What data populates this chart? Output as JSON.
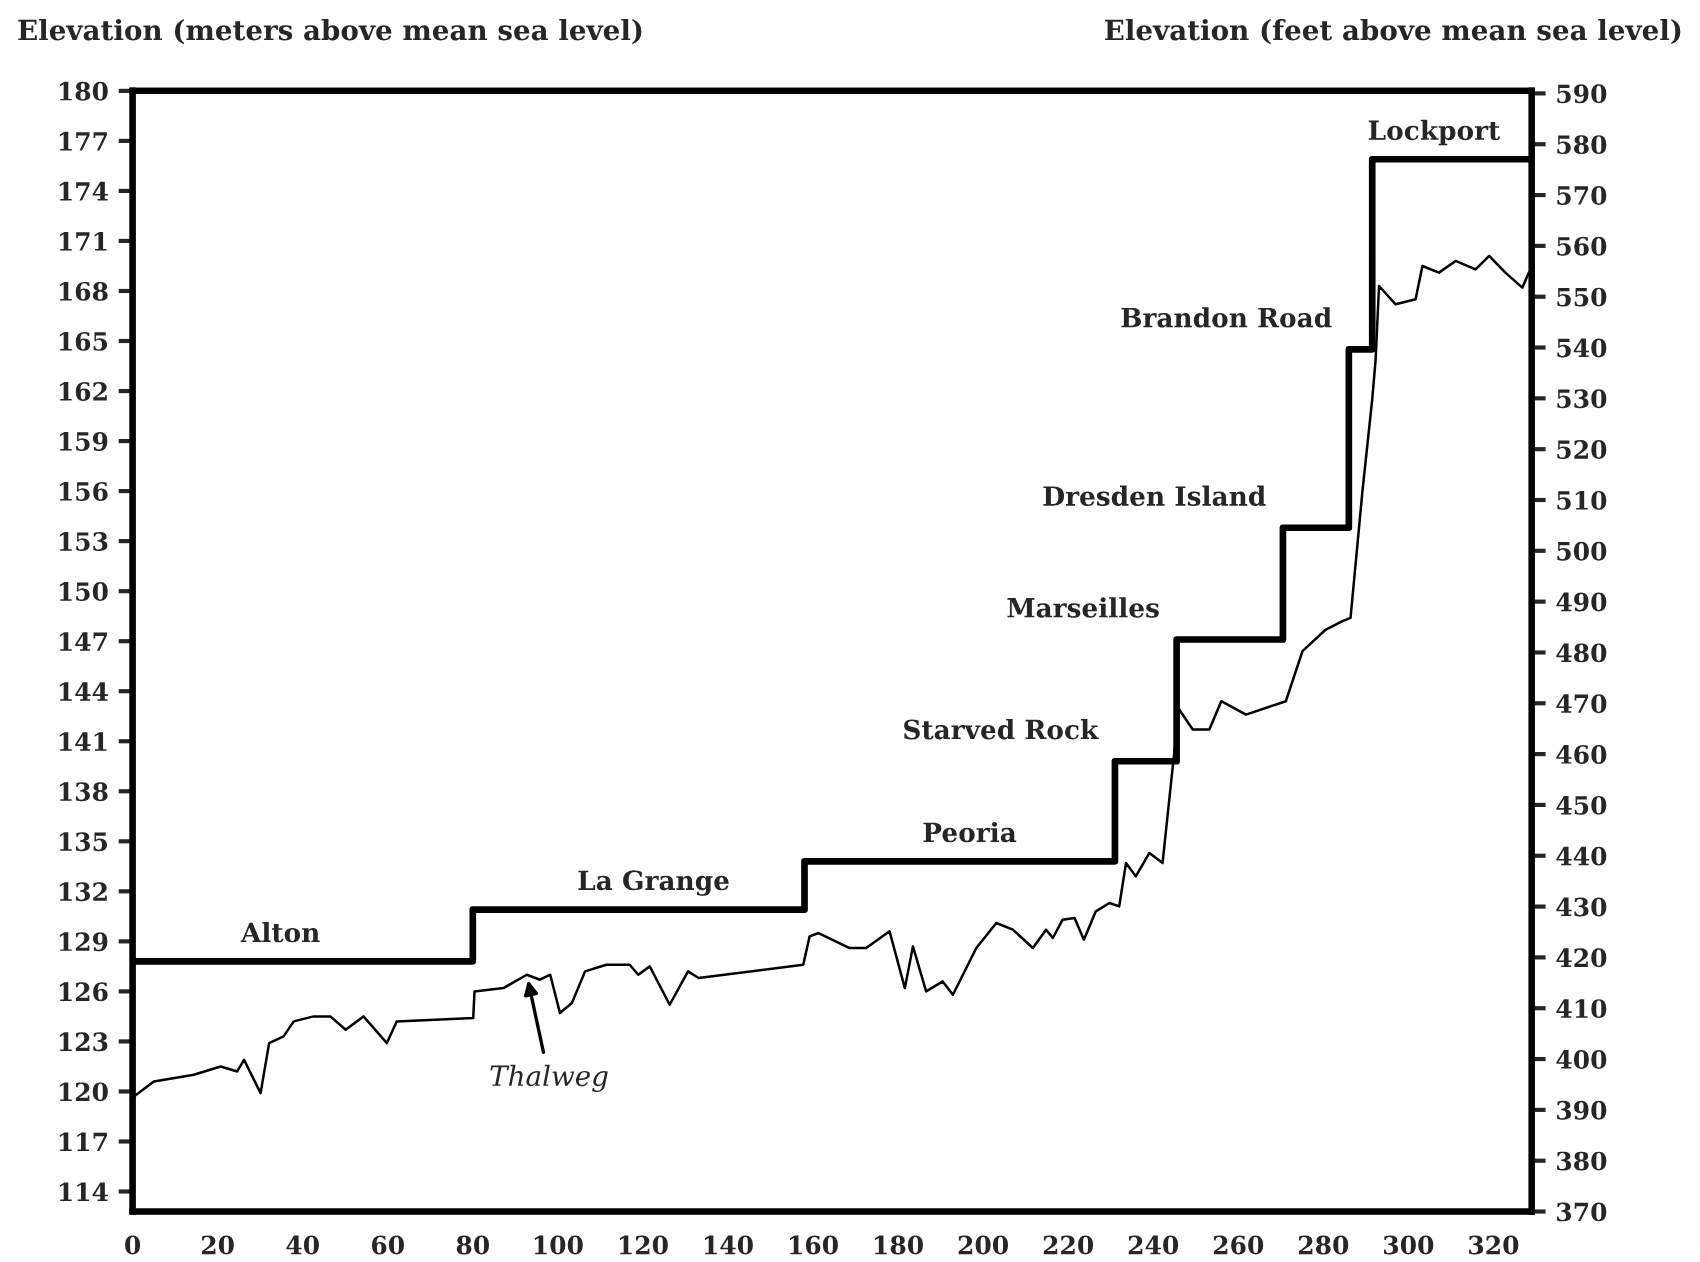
{
  "chart_data": {
    "type": "line",
    "ylabel": "Elevation (meters above mean sea level)",
    "y2label": "Elevation (feet above mean sea level)",
    "xlim": [
      0,
      329
    ],
    "xticks": [
      0,
      20,
      40,
      60,
      80,
      100,
      120,
      140,
      160,
      180,
      200,
      220,
      240,
      260,
      280,
      300,
      320
    ],
    "ylim": [
      112.8,
      180
    ],
    "yticks": [
      114,
      117,
      120,
      123,
      126,
      129,
      132,
      135,
      138,
      141,
      144,
      147,
      150,
      153,
      156,
      159,
      162,
      165,
      168,
      171,
      174,
      177,
      180
    ],
    "y2lim": [
      370,
      590.5
    ],
    "y2ticks": [
      370,
      380,
      390,
      400,
      410,
      420,
      430,
      440,
      450,
      460,
      470,
      480,
      490,
      500,
      510,
      520,
      530,
      540,
      550,
      560,
      570,
      580,
      590
    ],
    "grid": false,
    "legend": false,
    "series": [
      {
        "type": "step",
        "color": "#000000",
        "x": [
          0,
          80,
          158,
          231,
          245.5,
          270.5,
          286,
          291.5,
          329
        ],
        "values": [
          127.8,
          130.9,
          133.8,
          139.8,
          147.1,
          153.8,
          164.5,
          175.9,
          175.9
        ]
      },
      {
        "name": "Thalweg",
        "color": "#000000",
        "x": [
          0,
          0.3,
          5.0,
          14.4,
          20.7,
          24.6,
          26.2,
          30.1,
          32.1,
          35.5,
          37.9,
          42.6,
          46.5,
          50.1,
          54.3,
          59.8,
          62.1,
          80.1,
          80.4,
          87.2,
          92.7,
          95.8,
          98.2,
          100.5,
          103.3,
          106.4,
          111.4,
          116.9,
          118.9,
          121.6,
          126.3,
          130.6,
          133.1,
          157.7,
          159.2,
          161.3,
          168.6,
          172.5,
          178,
          181.6,
          183.5,
          186.6,
          190.5,
          192.9,
          198.4,
          203.1,
          207,
          211.7,
          214.8,
          216.4,
          218.7,
          221.5,
          223.7,
          226.5,
          229.7,
          232,
          233.6,
          235.9,
          239.1,
          242.2,
          244.6,
          246.1,
          249.3,
          253.2,
          256,
          261.8,
          271.2,
          275.1,
          280.6,
          284.5,
          286.4,
          289.2,
          291.5,
          292.3,
          293.1,
          297,
          301.7,
          303.3,
          307.2,
          311.1,
          315.8,
          319,
          322.8,
          326.8,
          328.3
        ],
        "values": [
          114.3,
          119.7,
          120.6,
          121.0,
          121.5,
          121.2,
          121.9,
          119.9,
          122.9,
          123.3,
          124.2,
          124.5,
          124.5,
          123.7,
          124.5,
          122.9,
          124.2,
          124.4,
          126.0,
          126.2,
          127.0,
          126.7,
          127.0,
          124.7,
          125.3,
          127.2,
          127.6,
          127.6,
          127.0,
          127.5,
          125.2,
          127.2,
          126.8,
          127.6,
          129.3,
          129.5,
          128.6,
          128.6,
          129.6,
          126.2,
          128.7,
          126.0,
          126.6,
          125.8,
          128.6,
          130.1,
          129.7,
          128.6,
          129.7,
          129.2,
          130.3,
          130.4,
          129.1,
          130.8,
          131.3,
          131.1,
          133.7,
          132.9,
          134.3,
          133.7,
          139.5,
          142.9,
          141.7,
          141.7,
          143.4,
          142.6,
          143.4,
          146.4,
          147.7,
          148.2,
          148.4,
          156.0,
          161.5,
          163.9,
          168.3,
          167.2,
          167.5,
          169.5,
          169.1,
          169.8,
          169.3,
          170.1,
          169.1,
          168.2,
          169.1
        ]
      }
    ],
    "annotations": [
      {
        "text": "Alton",
        "x": 34.8,
        "y": 127.8
      },
      {
        "text": "La Grange",
        "x": 122.5,
        "y": 130.9
      },
      {
        "text": "Peoria",
        "x": 196.8,
        "y": 133.8
      },
      {
        "text": "Starved Rock",
        "x": 231,
        "y": 139.8
      },
      {
        "text": "Marseilles",
        "x": 245.5,
        "y": 147.1
      },
      {
        "text": "Dresden Island",
        "x": 270.5,
        "y": 153.8
      },
      {
        "text": "Brandon Road",
        "x": 286,
        "y": 164.5
      },
      {
        "text": "Lockport",
        "x": 306,
        "y": 175.9
      }
    ]
  }
}
